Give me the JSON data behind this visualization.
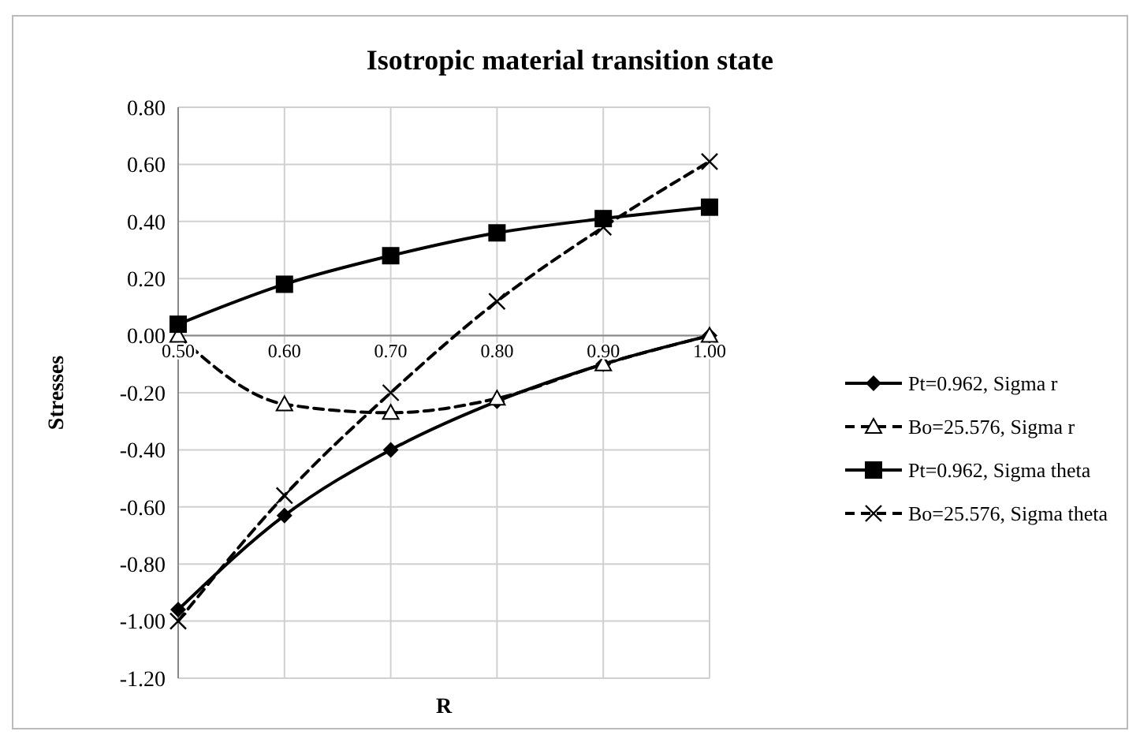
{
  "chart_data": {
    "type": "line",
    "title": "Isotropic material transition state",
    "xlabel": "R",
    "ylabel": "Stresses",
    "x": [
      0.5,
      0.6,
      0.7,
      0.8,
      0.9,
      1.0
    ],
    "xlim": [
      0.5,
      1.0
    ],
    "xticks": [
      {
        "value": 0.5,
        "label": "0.50"
      },
      {
        "value": 0.6,
        "label": "0.60"
      },
      {
        "value": 0.7,
        "label": "0.70"
      },
      {
        "value": 0.8,
        "label": "0.80"
      },
      {
        "value": 0.9,
        "label": "0.90"
      },
      {
        "value": 1.0,
        "label": "1.00"
      }
    ],
    "ylim": [
      -1.2,
      0.8
    ],
    "yticks": [
      {
        "value": 0.8,
        "label": "0.80"
      },
      {
        "value": 0.6,
        "label": "0.60"
      },
      {
        "value": 0.4,
        "label": "0.40"
      },
      {
        "value": 0.2,
        "label": "0.20"
      },
      {
        "value": 0,
        "label": "0.00"
      },
      {
        "value": -0.2,
        "label": "-0.20"
      },
      {
        "value": -0.4,
        "label": "-0.40"
      },
      {
        "value": -0.6,
        "label": "-0.60"
      },
      {
        "value": -0.8,
        "label": "-0.80"
      },
      {
        "value": -1.0,
        "label": "-1.00"
      },
      {
        "value": -1.2,
        "label": "-1.20"
      }
    ],
    "grid": true,
    "legend": "right",
    "series": [
      {
        "name": "Pt=0.962, Sigma r",
        "color": "#000000",
        "marker": "diamond",
        "line_style": "solid",
        "values": [
          -0.96,
          -0.63,
          -0.4,
          -0.23,
          -0.1,
          0.0
        ]
      },
      {
        "name": "Bo=25.576, Sigma r",
        "color": "#000000",
        "marker": "triangle",
        "line_style": "dashed",
        "values": [
          0.0,
          -0.24,
          -0.27,
          -0.22,
          -0.1,
          0.0
        ]
      },
      {
        "name": "Pt=0.962, Sigma theta",
        "color": "#000000",
        "marker": "square",
        "line_style": "solid",
        "values": [
          0.04,
          0.18,
          0.28,
          0.36,
          0.41,
          0.45
        ]
      },
      {
        "name": "Bo=25.576, Sigma theta",
        "color": "#000000",
        "marker": "cross",
        "line_style": "dashed",
        "values": [
          -1.0,
          -0.56,
          -0.2,
          0.12,
          0.38,
          0.61
        ]
      }
    ]
  }
}
